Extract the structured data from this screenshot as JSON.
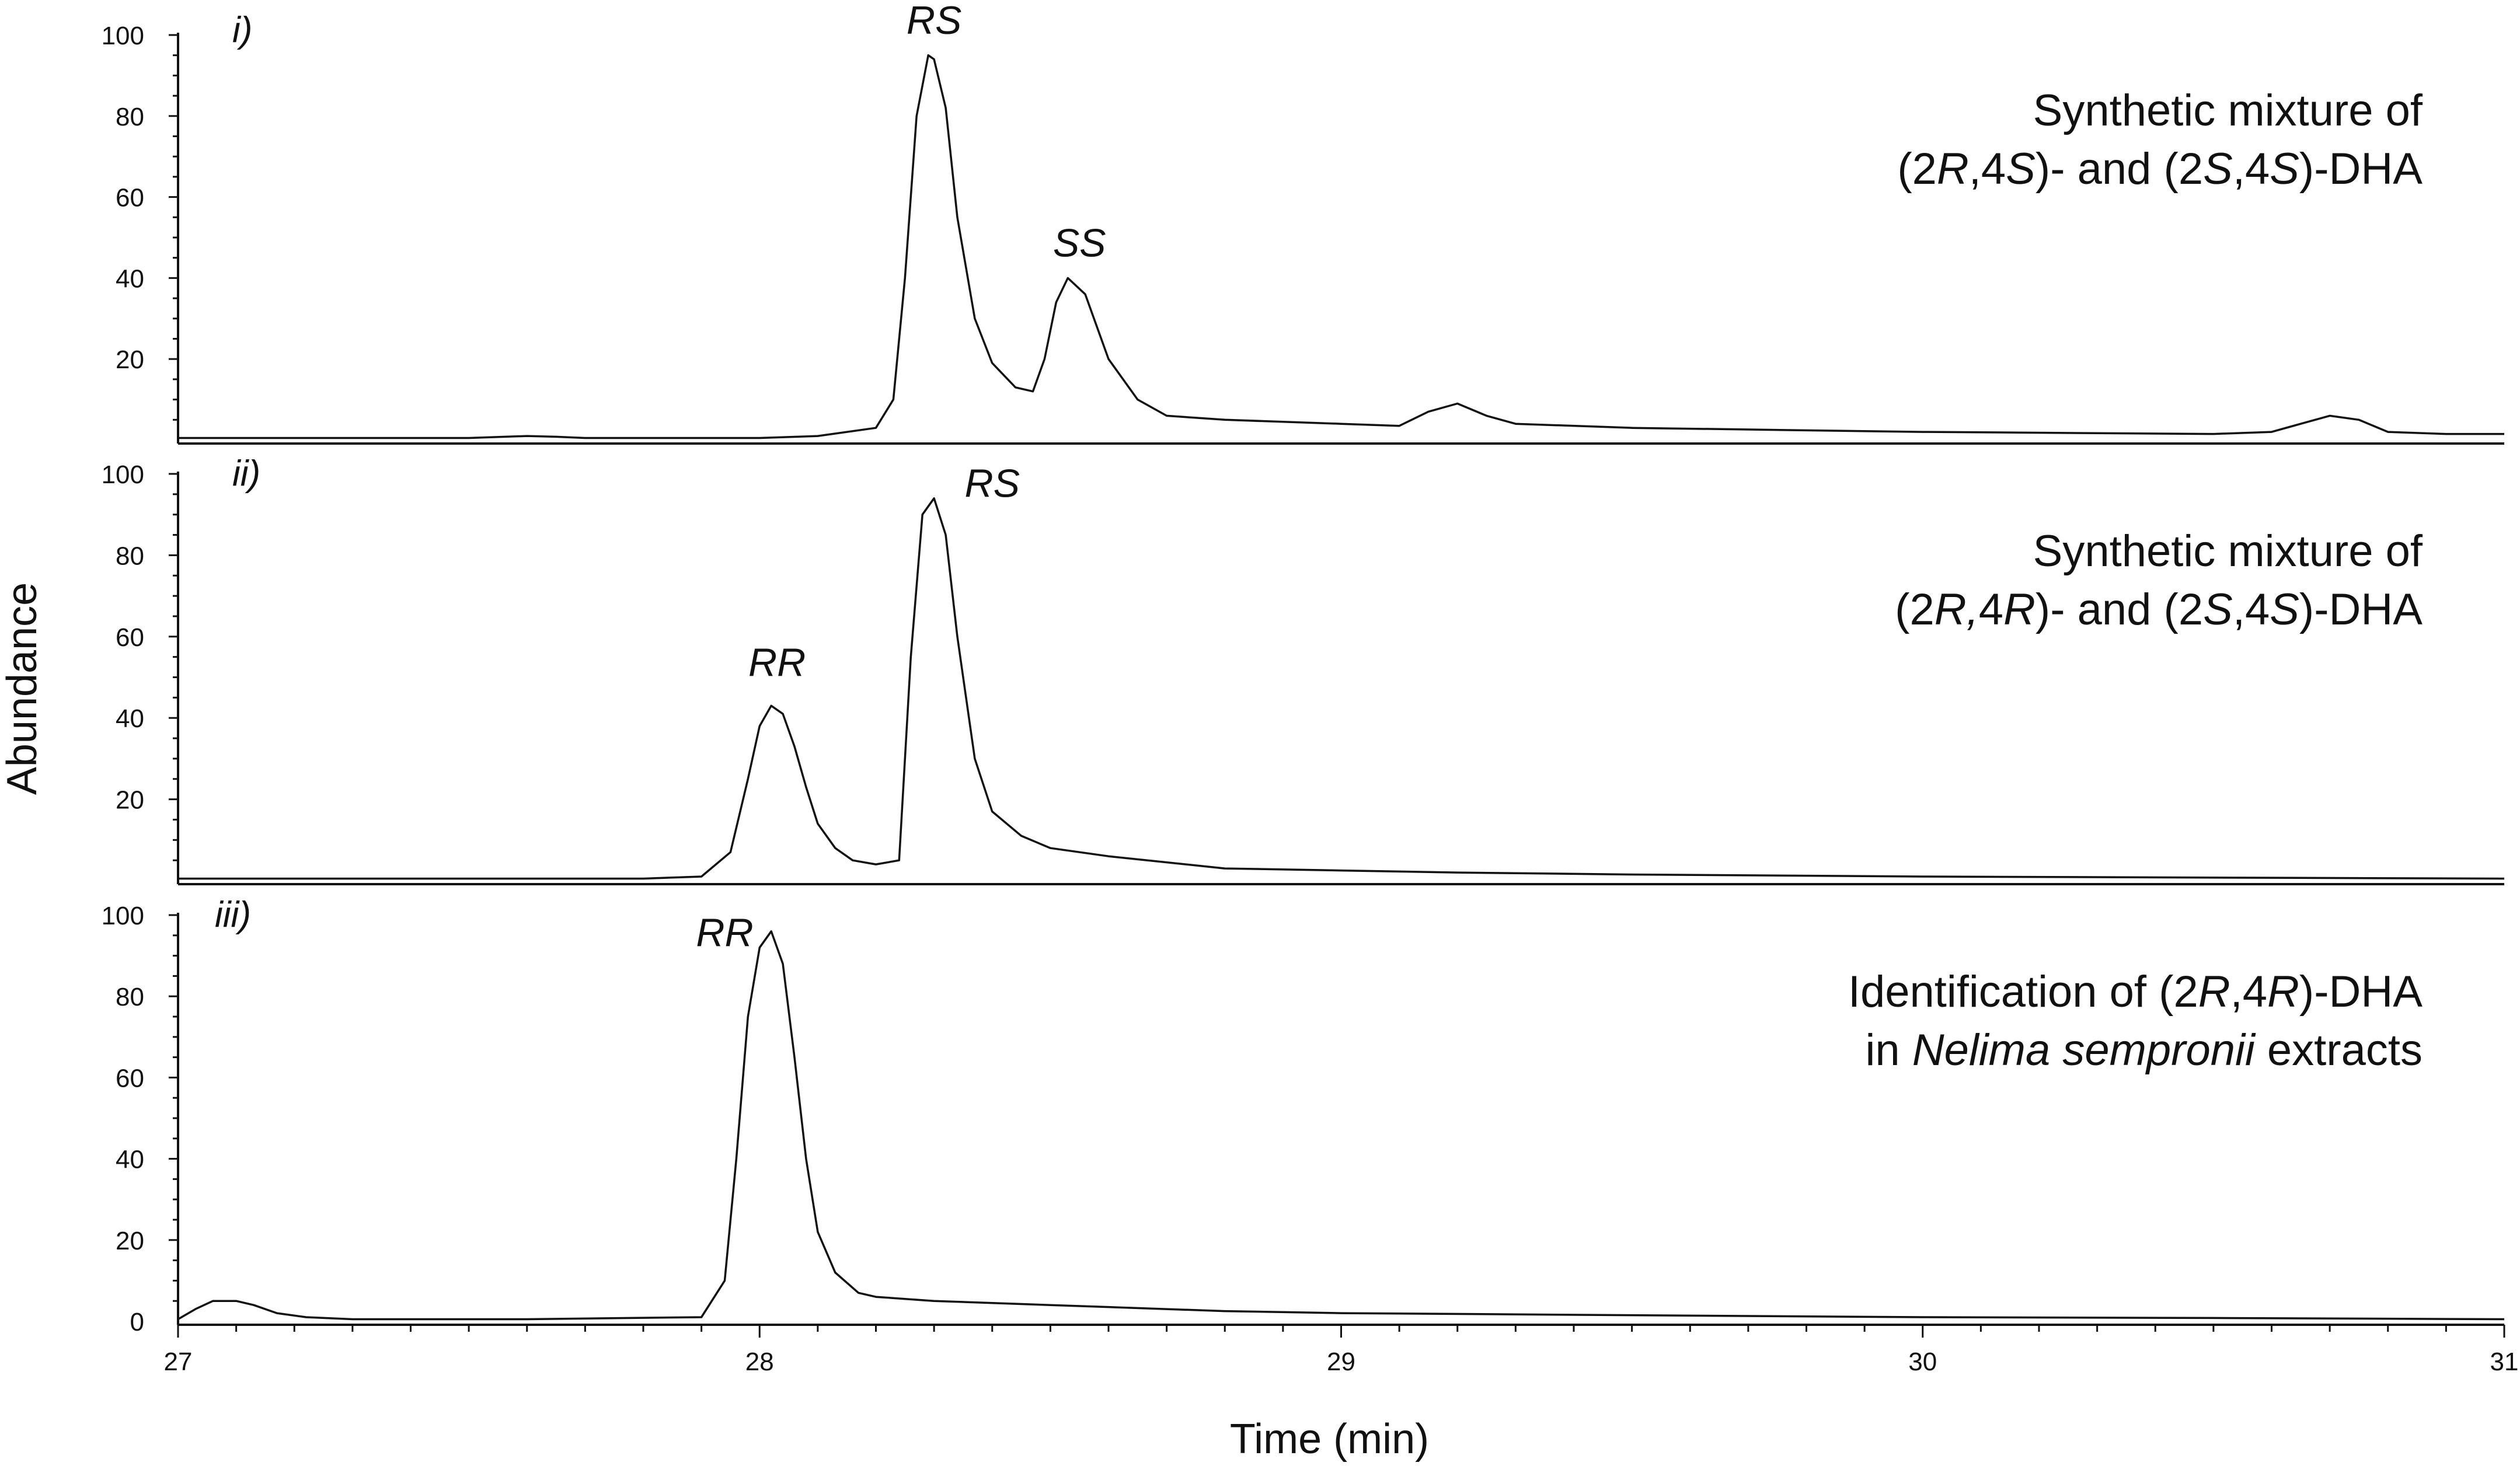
{
  "chart_data": [
    {
      "type": "line",
      "panel_label": "i)",
      "ylabel": "Abundance",
      "yticks": [
        "20",
        "40",
        "60",
        "80",
        "100"
      ],
      "ylim": [
        0,
        100
      ],
      "xlim": [
        27,
        31
      ],
      "description": [
        [
          {
            "t": "Synthetic mixture of",
            "i": false
          }
        ],
        [
          {
            "t": "(2",
            "i": false
          },
          {
            "t": "R",
            "i": true
          },
          {
            "t": ",4",
            "i": false
          },
          {
            "t": "S",
            "i": true
          },
          {
            "t": ")- and (2",
            "i": false
          },
          {
            "t": "S",
            "i": true
          },
          {
            "t": ",4",
            "i": false
          },
          {
            "t": "S",
            "i": true
          },
          {
            "t": ")-DHA",
            "i": false
          }
        ]
      ],
      "peak_labels": [
        {
          "text": "RS",
          "x": 28.3,
          "y": 96
        },
        {
          "text": "SS",
          "x": 28.55,
          "y": 41
        }
      ],
      "series": [
        {
          "x": [
            27.0,
            27.5,
            27.6,
            27.65,
            27.7,
            27.8,
            28.0,
            28.1,
            28.2,
            28.23,
            28.25,
            28.27,
            28.29,
            28.3,
            28.32,
            28.34,
            28.37,
            28.4,
            28.44,
            28.47,
            28.49,
            28.51,
            28.53,
            28.56,
            28.6,
            28.65,
            28.7,
            28.8,
            29.0,
            29.1,
            29.15,
            29.2,
            29.25,
            29.3,
            29.5,
            30.0,
            30.5,
            30.6,
            30.65,
            30.7,
            30.75,
            30.8,
            30.9,
            31.0
          ],
          "y": [
            0.5,
            0.5,
            1,
            0.8,
            0.5,
            0.5,
            0.5,
            1,
            3,
            10,
            40,
            80,
            95,
            94,
            82,
            55,
            30,
            19,
            13,
            12,
            20,
            34,
            40,
            36,
            20,
            10,
            6,
            5,
            4,
            3.5,
            7,
            9,
            6,
            4,
            3,
            2,
            1.5,
            2,
            4,
            6,
            5,
            2,
            1.5,
            1.5
          ]
        }
      ]
    },
    {
      "type": "line",
      "panel_label": "ii)",
      "yticks": [
        "20",
        "40",
        "60",
        "80",
        "100"
      ],
      "ylim": [
        0,
        100
      ],
      "xlim": [
        27,
        31
      ],
      "description": [
        [
          {
            "t": "Synthetic mixture of",
            "i": false
          }
        ],
        [
          {
            "t": "(2",
            "i": false
          },
          {
            "t": "R,",
            "i": true
          },
          {
            "t": "4",
            "i": false
          },
          {
            "t": "R",
            "i": true
          },
          {
            "t": ")- and (2",
            "i": false
          },
          {
            "t": "S",
            "i": true
          },
          {
            "t": ",4",
            "i": false
          },
          {
            "t": "S",
            "i": true
          },
          {
            "t": ")-DHA",
            "i": false
          }
        ]
      ],
      "peak_labels": [
        {
          "text": "RR",
          "x": 28.03,
          "y": 46
        },
        {
          "text": "RS",
          "x": 28.4,
          "y": 90
        }
      ],
      "series": [
        {
          "x": [
            27.0,
            27.8,
            27.9,
            27.95,
            27.98,
            28.0,
            28.02,
            28.04,
            28.06,
            28.08,
            28.1,
            28.13,
            28.16,
            28.2,
            28.24,
            28.26,
            28.28,
            28.3,
            28.32,
            28.34,
            28.37,
            28.4,
            28.45,
            28.5,
            28.6,
            28.8,
            29.0,
            29.2,
            29.5,
            30.0,
            31.0
          ],
          "y": [
            0.5,
            0.5,
            1,
            7,
            25,
            38,
            43,
            41,
            33,
            23,
            14,
            8,
            5,
            4,
            5,
            55,
            90,
            94,
            85,
            60,
            30,
            17,
            11,
            8,
            6,
            3,
            2.5,
            2,
            1.5,
            1,
            0.5
          ]
        }
      ]
    },
    {
      "type": "line",
      "panel_label": "iii)",
      "yticks": [
        "0",
        "20",
        "40",
        "60",
        "80",
        "100"
      ],
      "ylim": [
        0,
        100
      ],
      "xlim": [
        27,
        31
      ],
      "xticks": [
        "27",
        "28",
        "29",
        "30",
        "31"
      ],
      "xlabel": "Time (min)",
      "description": [
        [
          {
            "t": "Identification of (2",
            "i": false
          },
          {
            "t": "R",
            "i": true
          },
          {
            "t": ",4",
            "i": false
          },
          {
            "t": "R",
            "i": true
          },
          {
            "t": ")-DHA",
            "i": false
          }
        ],
        [
          {
            "t": "in ",
            "i": false
          },
          {
            "t": "Nelima sempronii",
            "i": true
          },
          {
            "t": " extracts",
            "i": false
          }
        ]
      ],
      "peak_labels": [
        {
          "text": "RR",
          "x": 27.94,
          "y": 88
        }
      ],
      "series": [
        {
          "x": [
            27.0,
            27.03,
            27.06,
            27.1,
            27.13,
            27.17,
            27.22,
            27.3,
            27.6,
            27.9,
            27.94,
            27.96,
            27.98,
            28.0,
            28.02,
            28.04,
            28.06,
            28.08,
            28.1,
            28.13,
            28.17,
            28.2,
            28.3,
            28.5,
            28.8,
            29.0,
            29.5,
            30.0,
            30.5,
            31.0
          ],
          "y": [
            0.5,
            3,
            5,
            5,
            4,
            2,
            1,
            0.5,
            0.5,
            1,
            10,
            40,
            75,
            92,
            96,
            88,
            65,
            40,
            22,
            12,
            7,
            6,
            5,
            4,
            2.5,
            2,
            1.5,
            1,
            0.8,
            0.5
          ]
        }
      ]
    }
  ]
}
